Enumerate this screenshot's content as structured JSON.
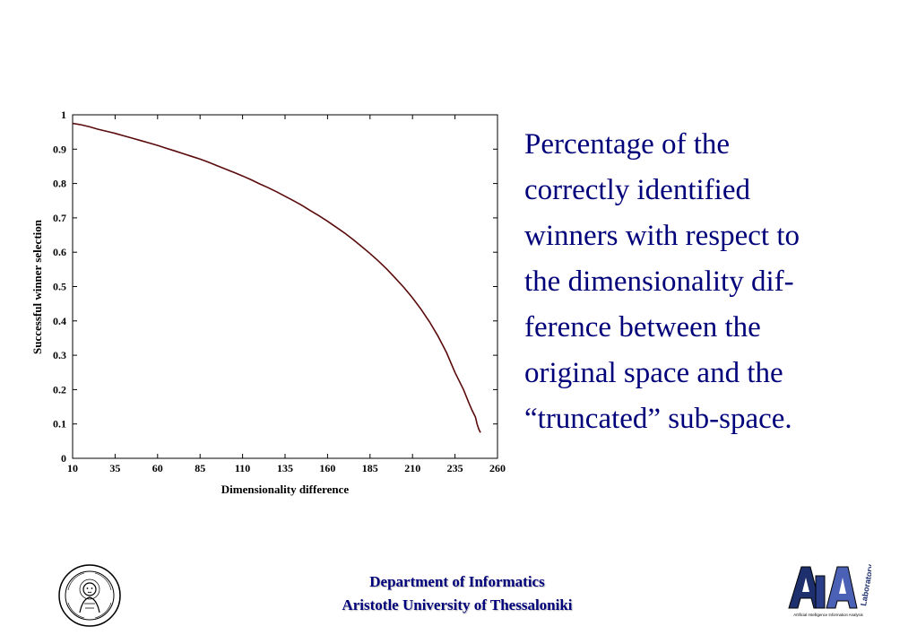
{
  "chart_data": {
    "type": "line",
    "title": "",
    "xlabel": "Dimensionality difference",
    "ylabel": "Successful winner selection",
    "xlim": [
      10,
      260
    ],
    "ylim": [
      0,
      1
    ],
    "x_ticks": [
      "10",
      "35",
      "60",
      "85",
      "110",
      "135",
      "160",
      "185",
      "210",
      "235",
      "260"
    ],
    "y_ticks": [
      "0",
      "0.1",
      "0.2",
      "0.3",
      "0.4",
      "0.5",
      "0.6",
      "0.7",
      "0.8",
      "0.9",
      "1"
    ],
    "grid": false,
    "series": [
      {
        "color": "#5a0a0a",
        "x": [
          10,
          15,
          20,
          25,
          30,
          35,
          40,
          45,
          50,
          55,
          60,
          65,
          70,
          75,
          80,
          85,
          90,
          95,
          100,
          105,
          110,
          115,
          120,
          125,
          130,
          135,
          140,
          145,
          150,
          155,
          160,
          165,
          170,
          175,
          180,
          185,
          190,
          195,
          200,
          205,
          210,
          215,
          220,
          225,
          230,
          235,
          240,
          243,
          245,
          247,
          248,
          249,
          250
        ],
        "y": [
          0.975,
          0.971,
          0.965,
          0.958,
          0.952,
          0.946,
          0.939,
          0.932,
          0.925,
          0.918,
          0.911,
          0.903,
          0.895,
          0.887,
          0.879,
          0.871,
          0.862,
          0.852,
          0.842,
          0.832,
          0.822,
          0.811,
          0.799,
          0.788,
          0.776,
          0.763,
          0.75,
          0.736,
          0.721,
          0.706,
          0.69,
          0.673,
          0.656,
          0.637,
          0.617,
          0.596,
          0.574,
          0.55,
          0.524,
          0.497,
          0.467,
          0.434,
          0.397,
          0.356,
          0.308,
          0.25,
          0.2,
          0.163,
          0.14,
          0.12,
          0.1,
          0.085,
          0.075
        ]
      }
    ]
  },
  "caption": {
    "lines": [
      "Percentage of the",
      "correctly identified",
      "winners with respect to",
      "the dimensionality dif-",
      "ference between the",
      "original space and the",
      "“truncated” sub-space."
    ]
  },
  "footer": {
    "line1": "Department of Informatics",
    "line2": "Aristotle University of Thessaloniki"
  },
  "logos": {
    "left_seal": "university-seal",
    "right_logo": "AIIA-laboratory-logo",
    "right_logo_text": "Laboratory",
    "right_logo_subtext": "Artificial Intelligence Information Analysis"
  },
  "colors": {
    "caption_text": "#00007a",
    "footer_text": "#00007a",
    "line": "#5a0a0a"
  }
}
